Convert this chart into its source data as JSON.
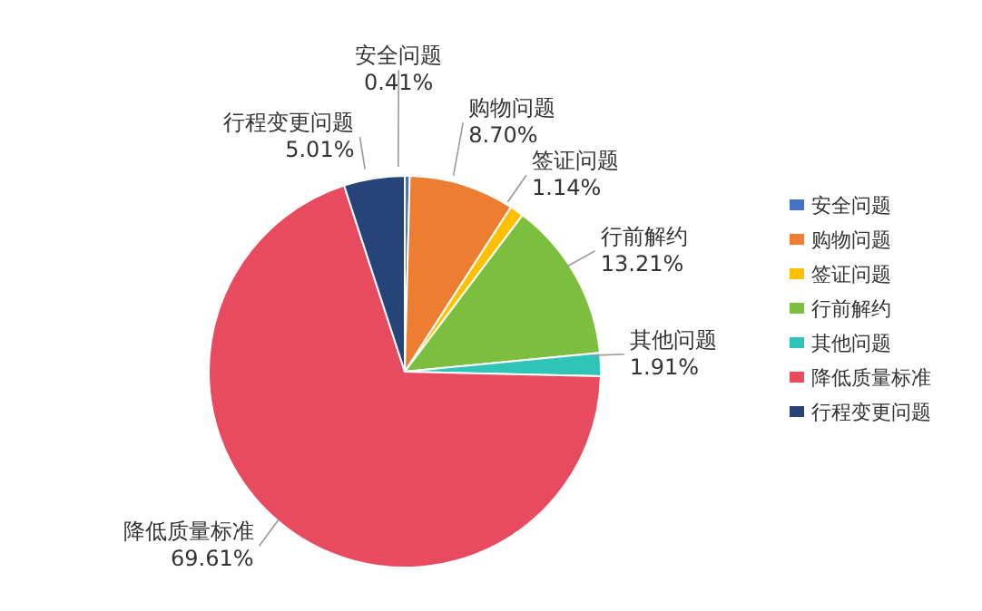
{
  "chart_data": {
    "type": "pie",
    "categories": [
      "安全问题",
      "购物问题",
      "签证问题",
      "行前解约",
      "其他问题",
      "降低质量标准",
      "行程变更问题"
    ],
    "values": [
      0.41,
      8.7,
      1.14,
      13.21,
      1.91,
      69.61,
      5.01
    ],
    "value_labels": [
      "0.41%",
      "8.70%",
      "1.14%",
      "13.21%",
      "1.91%",
      "69.61%",
      "5.01%"
    ],
    "colors": [
      "#4472c4",
      "#ed7d31",
      "#ffc000",
      "#7cbf3f",
      "#2ec4b6",
      "#e84a5f",
      "#264478"
    ],
    "legend": "right"
  }
}
